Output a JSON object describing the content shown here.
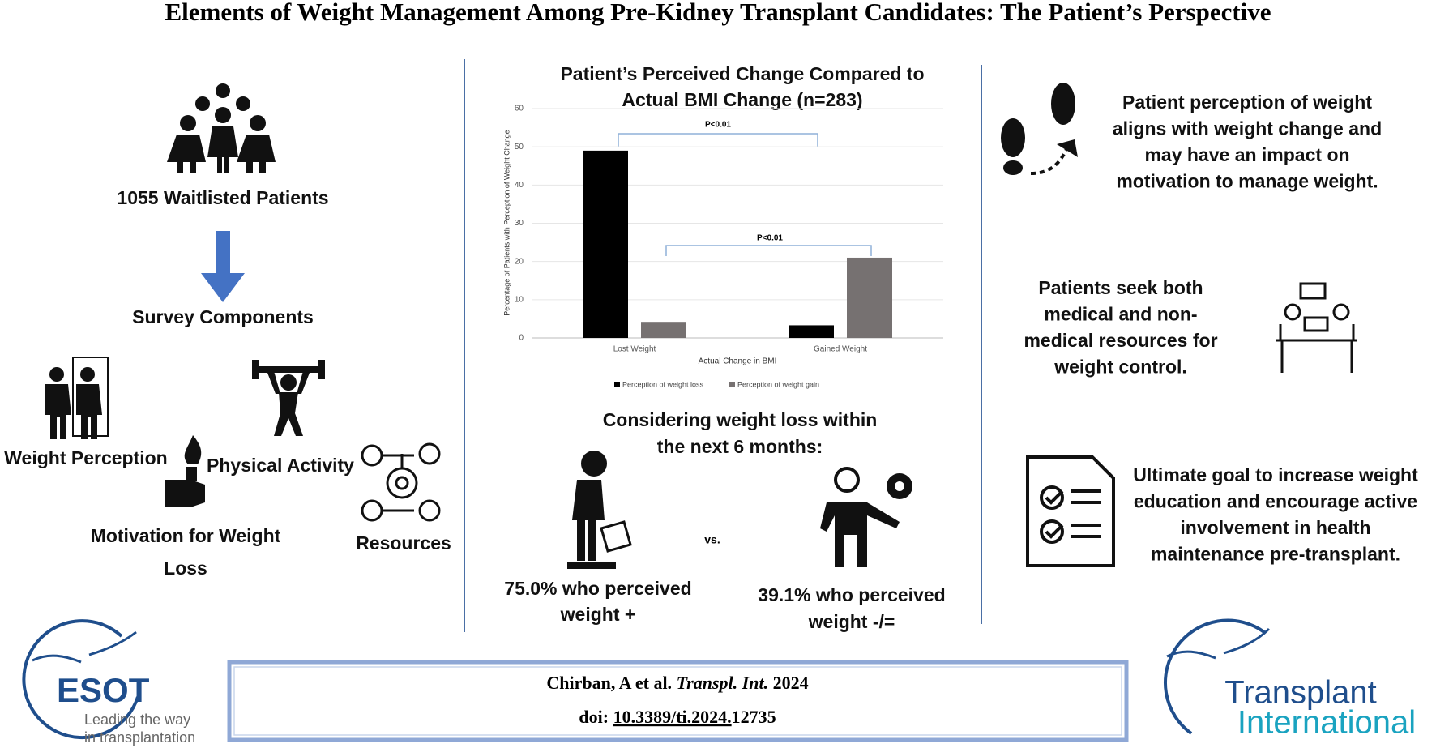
{
  "title": "Elements of Weight Management Among Pre-Kidney Transplant Candidates: The Patient’s Perspective",
  "left": {
    "patients": "1055 Waitlisted Patients",
    "survey": "Survey Components",
    "weight_perception": "Weight Perception",
    "physical_activity": "Physical Activity",
    "motivation": [
      "Motivation for Weight",
      "Loss"
    ],
    "resources": "Resources"
  },
  "chart_data": {
    "type": "bar",
    "title": [
      "Patient’s Perceived Change Compared to",
      "Actual BMI Change (n=283)"
    ],
    "x_label": "Actual Change in BMI",
    "y_label": "Percentage of Patients with Perception of Weight Change",
    "categories": [
      "Lost Weight",
      "Gained Weight"
    ],
    "series": [
      {
        "name": "Perception of weight loss",
        "color": "#000000",
        "values": [
          49,
          3.3
        ]
      },
      {
        "name": "Perception of weight gain",
        "color": "#767171",
        "values": [
          4.2,
          21
        ]
      }
    ],
    "ylim": [
      0,
      60
    ],
    "yticks": [
      0,
      10,
      20,
      30,
      40,
      50,
      60
    ],
    "grid": true,
    "annotations": [
      "P<0.01",
      "P<0.01"
    ]
  },
  "intention": {
    "heading": [
      "Considering weight loss within",
      "the next 6 months:"
    ],
    "vs": "vs.",
    "left": [
      "75.0% who perceived",
      "weight +"
    ],
    "right": [
      "39.1% who perceived",
      "weight -/="
    ]
  },
  "findings": [
    [
      "Patient perception of weight",
      "aligns with weight change and",
      "may have an impact on",
      "motivation to manage weight."
    ],
    [
      "Patients seek both",
      "medical and non-",
      "medical resources for",
      "weight control."
    ],
    [
      "Ultimate goal to increase weight",
      "education and encourage active",
      "involvement in health",
      "maintenance pre-transplant."
    ]
  ],
  "citation": {
    "authors": "Chirban, A  et al.",
    "journal": "Transpl. Int.",
    "year": "2024",
    "doi_label": "doi:",
    "doi_underlined": "10.3389/ti.2024.",
    "doi_rest": "12735"
  },
  "logos": {
    "esot": "ESOT",
    "esot_tagline": [
      "Leading the way",
      "in transplantation"
    ],
    "journal": [
      "Transplant",
      "International"
    ]
  }
}
